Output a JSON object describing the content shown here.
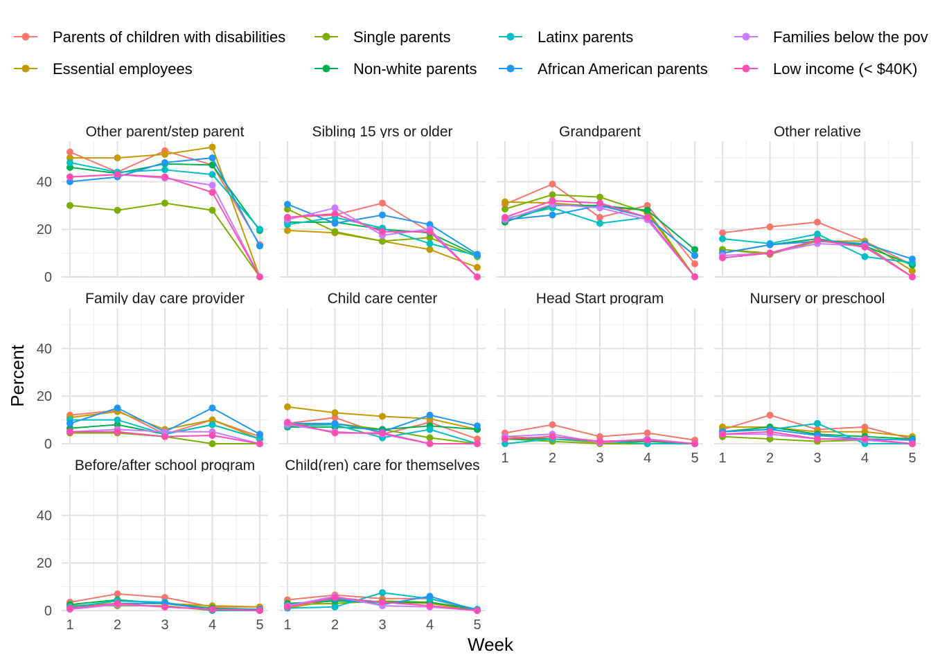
{
  "chart_data": {
    "type": "line",
    "xlabel": "Week",
    "ylabel": "Percent",
    "x": [
      1,
      2,
      3,
      4,
      5
    ],
    "x_ticks": [
      "1",
      "2",
      "3",
      "4",
      "5"
    ],
    "y_ticks": [
      "0",
      "20",
      "40"
    ],
    "ylim": [
      0,
      57
    ],
    "grid": true,
    "legend_position": "top",
    "legend": [
      {
        "name": "Parents of children with disabilities",
        "color": "#F8766D"
      },
      {
        "name": "Essential employees",
        "color": "#C49A00"
      },
      {
        "name": "Single parents",
        "color": "#7CAE00"
      },
      {
        "name": "Non-white parents",
        "color": "#00B050"
      },
      {
        "name": "Latinx parents",
        "color": "#00BFC4"
      },
      {
        "name": "African American parents",
        "color": "#2197F3"
      },
      {
        "name": "Families below the pov",
        "color": "#C77CFF"
      },
      {
        "name": "Low income (< $40K)",
        "color": "#FF4FB0"
      }
    ],
    "panels": [
      {
        "title": "Other parent/step parent",
        "series": [
          {
            "name": "Parents of children with disabilities",
            "values": [
              52.5,
              44,
              53,
              47,
              13.5
            ]
          },
          {
            "name": "Essential employees",
            "values": [
              50,
              50,
              51.5,
              54.5,
              0
            ]
          },
          {
            "name": "Single parents",
            "values": [
              30,
              28,
              31,
              28,
              0
            ]
          },
          {
            "name": "Non-white parents",
            "values": [
              46,
              43.5,
              47.5,
              47,
              19.5
            ]
          },
          {
            "name": "Latinx parents",
            "values": [
              48,
              44,
              45,
              43,
              20
            ]
          },
          {
            "name": "African American parents",
            "values": [
              40,
              42,
              48,
              50,
              13
            ]
          },
          {
            "name": "Families below the pov",
            "values": [
              42,
              43,
              41.5,
              38.5,
              0
            ]
          },
          {
            "name": "Low income (< $40K)",
            "values": [
              42,
              43,
              42,
              35.5,
              0
            ]
          }
        ]
      },
      {
        "title": "Sibling 15 yrs or older",
        "series": [
          {
            "name": "Parents of children with disabilities",
            "values": [
              25,
              26,
              31,
              19,
              0
            ]
          },
          {
            "name": "Essential employees",
            "values": [
              19.5,
              18.5,
              15,
              11.5,
              4
            ]
          },
          {
            "name": "Single parents",
            "values": [
              28.5,
              19,
              15,
              16.5,
              8.5
            ]
          },
          {
            "name": "Non-white parents",
            "values": [
              23,
              23,
              20,
              18.5,
              9
            ]
          },
          {
            "name": "Latinx parents",
            "values": [
              22,
              25,
              20.5,
              14,
              9
            ]
          },
          {
            "name": "African American parents",
            "values": [
              30.5,
              22.5,
              26,
              22,
              9.5
            ]
          },
          {
            "name": "Families below the pov",
            "values": [
              24,
              29,
              17.5,
              20,
              0
            ]
          },
          {
            "name": "Low income (< $40K)",
            "values": [
              25,
              26.5,
              19,
              19,
              0
            ]
          }
        ]
      },
      {
        "title": "Grandparent",
        "series": [
          {
            "name": "Parents of children with disabilities",
            "values": [
              30.5,
              39,
              25,
              30,
              5.5
            ]
          },
          {
            "name": "Essential employees",
            "values": [
              31.5,
              31,
              29.5,
              28,
              0
            ]
          },
          {
            "name": "Single parents",
            "values": [
              28.5,
              34.5,
              33.5,
              27,
              0
            ]
          },
          {
            "name": "Non-white parents",
            "values": [
              23,
              30,
              30,
              28,
              11.5
            ]
          },
          {
            "name": "Latinx parents",
            "values": [
              24.5,
              29,
              22.5,
              25,
              9
            ]
          },
          {
            "name": "African American parents",
            "values": [
              24,
              26,
              30,
              25,
              9
            ]
          },
          {
            "name": "Families below the pov",
            "values": [
              24,
              30.5,
              29,
              24,
              0
            ]
          },
          {
            "name": "Low income (< $40K)",
            "values": [
              25,
              32,
              31,
              25,
              0
            ]
          }
        ]
      },
      {
        "title": "Other relative",
        "series": [
          {
            "name": "Parents of children with disabilities",
            "values": [
              18.5,
              21,
              23,
              15,
              5
            ]
          },
          {
            "name": "Essential employees",
            "values": [
              11.5,
              10,
              15,
              15,
              2.5
            ]
          },
          {
            "name": "Single parents",
            "values": [
              11.5,
              9.5,
              15,
              13.5,
              0
            ]
          },
          {
            "name": "Non-white parents",
            "values": [
              10,
              13.5,
              16,
              13,
              5
            ]
          },
          {
            "name": "Latinx parents",
            "values": [
              16,
              14,
              18,
              8.5,
              6
            ]
          },
          {
            "name": "African American parents",
            "values": [
              10,
              13.5,
              15,
              14,
              7.5
            ]
          },
          {
            "name": "Families below the pov",
            "values": [
              9,
              10,
              14,
              13,
              0
            ]
          },
          {
            "name": "Low income (< $40K)",
            "values": [
              8,
              10,
              15.5,
              12.5,
              0
            ]
          }
        ]
      },
      {
        "title": "Family day care provider",
        "series": [
          {
            "name": "Parents of children with disabilities",
            "values": [
              12,
              14,
              4,
              10,
              3
            ]
          },
          {
            "name": "Essential employees",
            "values": [
              11,
              13.5,
              6,
              10,
              2
            ]
          },
          {
            "name": "Single parents",
            "values": [
              4.5,
              4.5,
              3,
              0,
              0
            ]
          },
          {
            "name": "Non-white parents",
            "values": [
              6.5,
              8,
              4,
              8,
              2
            ]
          },
          {
            "name": "Latinx parents",
            "values": [
              10,
              10,
              4,
              8,
              2
            ]
          },
          {
            "name": "African American parents",
            "values": [
              8.5,
              15,
              5,
              15,
              4
            ]
          },
          {
            "name": "Families below the pov",
            "values": [
              5,
              6,
              5,
              5,
              0
            ]
          },
          {
            "name": "Low income (< $40K)",
            "values": [
              5,
              5,
              3,
              3.5,
              0
            ]
          }
        ]
      },
      {
        "title": "Child care center",
        "series": [
          {
            "name": "Parents of children with disabilities",
            "values": [
              8.5,
              11,
              4,
              9,
              2
            ]
          },
          {
            "name": "Essential employees",
            "values": [
              15.5,
              13,
              11.5,
              10.5,
              6
            ]
          },
          {
            "name": "Single parents",
            "values": [
              8,
              8.5,
              6,
              2.5,
              0
            ]
          },
          {
            "name": "Non-white parents",
            "values": [
              7,
              7,
              6,
              7.5,
              6
            ]
          },
          {
            "name": "Latinx parents",
            "values": [
              7.5,
              8,
              2.5,
              6,
              0
            ]
          },
          {
            "name": "African American parents",
            "values": [
              8.5,
              8.5,
              5,
              12,
              7.5
            ]
          },
          {
            "name": "Families below the pov",
            "values": [
              8,
              5,
              4,
              0,
              0
            ]
          },
          {
            "name": "Low income (< $40K)",
            "values": [
              9,
              4.5,
              4.5,
              0,
              0
            ]
          }
        ]
      },
      {
        "title": "Head Start program",
        "series": [
          {
            "name": "Parents of children with disabilities",
            "values": [
              4.5,
              8,
              3,
              4.5,
              1.5
            ]
          },
          {
            "name": "Essential employees",
            "values": [
              3,
              2,
              0.5,
              1,
              0
            ]
          },
          {
            "name": "Single parents",
            "values": [
              2,
              1,
              0,
              0,
              0
            ]
          },
          {
            "name": "Non-white parents",
            "values": [
              2,
              2,
              1,
              1,
              0
            ]
          },
          {
            "name": "Latinx parents",
            "values": [
              0,
              2,
              1,
              0,
              0
            ]
          },
          {
            "name": "African American parents",
            "values": [
              2,
              3,
              1,
              1.5,
              0
            ]
          },
          {
            "name": "Families below the pov",
            "values": [
              3,
              4,
              0.5,
              2,
              0
            ]
          },
          {
            "name": "Low income (< $40K)",
            "values": [
              2,
              3,
              1,
              1.5,
              0
            ]
          }
        ]
      },
      {
        "title": "Nursery or preschool",
        "series": [
          {
            "name": "Parents of children with disabilities",
            "values": [
              6,
              12,
              6,
              7,
              2
            ]
          },
          {
            "name": "Essential employees",
            "values": [
              7,
              7,
              5,
              5,
              3
            ]
          },
          {
            "name": "Single parents",
            "values": [
              3,
              2,
              1,
              1.5,
              0
            ]
          },
          {
            "name": "Non-white parents",
            "values": [
              5,
              7,
              4,
              3,
              2
            ]
          },
          {
            "name": "Latinx parents",
            "values": [
              5,
              6,
              8.5,
              0,
              0
            ]
          },
          {
            "name": "African American parents",
            "values": [
              5,
              6,
              3.5,
              2,
              1.5
            ]
          },
          {
            "name": "Families below the pov",
            "values": [
              4,
              4,
              2,
              1.5,
              0
            ]
          },
          {
            "name": "Low income (< $40K)",
            "values": [
              4,
              5,
              2,
              2,
              0
            ]
          }
        ]
      },
      {
        "title": "Before/after school program",
        "series": [
          {
            "name": "Parents of children with disabilities",
            "values": [
              3.5,
              7,
              5.5,
              1.5,
              1.5
            ]
          },
          {
            "name": "Essential employees",
            "values": [
              2,
              3,
              3,
              2,
              1.5
            ]
          },
          {
            "name": "Single parents",
            "values": [
              2,
              2,
              2,
              0,
              0
            ]
          },
          {
            "name": "Non-white parents",
            "values": [
              2.5,
              4.5,
              3,
              1,
              0.5
            ]
          },
          {
            "name": "Latinx parents",
            "values": [
              1.5,
              4,
              3.5,
              0,
              0
            ]
          },
          {
            "name": "African American parents",
            "values": [
              1,
              3,
              3,
              0.5,
              0.5
            ]
          },
          {
            "name": "Families below the pov",
            "values": [
              0.5,
              2.5,
              1.5,
              0.5,
              0
            ]
          },
          {
            "name": "Low income (< $40K)",
            "values": [
              1,
              3,
              1.5,
              0.5,
              0
            ]
          }
        ]
      },
      {
        "title": "Child(ren) care for themselves",
        "series": [
          {
            "name": "Parents of children with disabilities",
            "values": [
              4.5,
              6.5,
              5,
              5,
              0
            ]
          },
          {
            "name": "Essential employees",
            "values": [
              1,
              4.5,
              3.5,
              3,
              0
            ]
          },
          {
            "name": "Single parents",
            "values": [
              2.5,
              3,
              4,
              3.5,
              0
            ]
          },
          {
            "name": "Non-white parents",
            "values": [
              3,
              4,
              3.5,
              3.5,
              0.5
            ]
          },
          {
            "name": "Latinx parents",
            "values": [
              1,
              1.5,
              7.5,
              5,
              0.5
            ]
          },
          {
            "name": "African American parents",
            "values": [
              2,
              5,
              2.5,
              6,
              0
            ]
          },
          {
            "name": "Families below the pov",
            "values": [
              2,
              6,
              2,
              1.5,
              0
            ]
          },
          {
            "name": "Low income (< $40K)",
            "values": [
              1.5,
              5.5,
              3.5,
              2,
              0
            ]
          }
        ]
      }
    ]
  }
}
